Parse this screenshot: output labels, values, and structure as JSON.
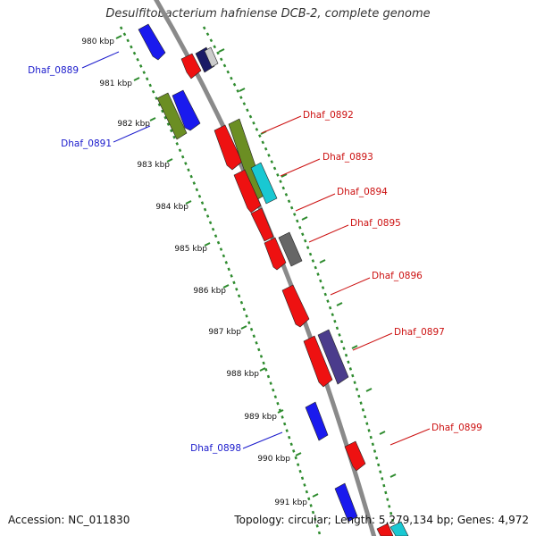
{
  "header": {
    "title": "Desulfitobacterium hafniense DCB-2, complete genome"
  },
  "footer": {
    "accession": "Accession: NC_011830",
    "topology": "Topology: circular; Length: 5,279,134 bp; Genes: 4,972"
  },
  "ticks": [
    {
      "label": "980 kbp"
    },
    {
      "label": "981 kbp"
    },
    {
      "label": "982 kbp"
    },
    {
      "label": "983 kbp"
    },
    {
      "label": "984 kbp"
    },
    {
      "label": "985 kbp"
    },
    {
      "label": "986 kbp"
    },
    {
      "label": "987 kbp"
    },
    {
      "label": "988 kbp"
    },
    {
      "label": "989 kbp"
    },
    {
      "label": "990 kbp"
    },
    {
      "label": "991 kbp"
    }
  ],
  "gene_labels": {
    "left": [
      {
        "name": "Dhaf_0889",
        "color": "#1a1acc"
      },
      {
        "name": "Dhaf_0891",
        "color": "#1a1acc"
      },
      {
        "name": "Dhaf_0898",
        "color": "#1a1acc"
      }
    ],
    "right": [
      {
        "name": "Dhaf_0892",
        "color": "#cc1111"
      },
      {
        "name": "Dhaf_0893",
        "color": "#cc1111"
      },
      {
        "name": "Dhaf_0894",
        "color": "#cc1111"
      },
      {
        "name": "Dhaf_0895",
        "color": "#cc1111"
      },
      {
        "name": "Dhaf_0896",
        "color": "#cc1111"
      },
      {
        "name": "Dhaf_0897",
        "color": "#cc1111"
      },
      {
        "name": "Dhaf_0899",
        "color": "#cc1111"
      }
    ]
  },
  "colors": {
    "backbone": "#8a8a8a",
    "ring_dots": "#2e8b2e",
    "gene_red": "#ee1111",
    "gene_blue": "#1a1aee",
    "gene_olive": "#6b8e23",
    "gene_cyan": "#19c8d2",
    "gene_gray": "#666666",
    "gene_purple": "#4b3c8c",
    "gene_navy": "#1a1a66"
  }
}
